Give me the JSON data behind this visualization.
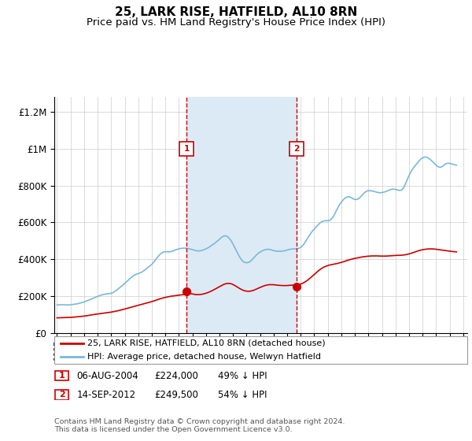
{
  "title": "25, LARK RISE, HATFIELD, AL10 8RN",
  "subtitle": "Price paid vs. HM Land Registry's House Price Index (HPI)",
  "title_fontsize": 11,
  "subtitle_fontsize": 9.5,
  "ylabel_ticks": [
    "£0",
    "£200K",
    "£400K",
    "£600K",
    "£800K",
    "£1M",
    "£1.2M"
  ],
  "ytick_values": [
    0,
    200000,
    400000,
    600000,
    800000,
    1000000,
    1200000
  ],
  "ylim": [
    0,
    1280000
  ],
  "xlim_start": 1994.8,
  "xlim_end": 2025.3,
  "hpi_color": "#7ab8d9",
  "price_color": "#cc0000",
  "shade_color": "#dceaf5",
  "vline_color": "#cc0000",
  "transaction1_x": 2004.58,
  "transaction2_x": 2012.7,
  "transaction1_price": 224000,
  "transaction2_price": 249500,
  "marker_y": 1000000,
  "footnote": "Contains HM Land Registry data © Crown copyright and database right 2024.\nThis data is licensed under the Open Government Licence v3.0.",
  "legend_label1": "25, LARK RISE, HATFIELD, AL10 8RN (detached house)",
  "legend_label2": "HPI: Average price, detached house, Welwyn Hatfield",
  "hpi_data": [
    [
      1995.0,
      152000
    ],
    [
      1995.1,
      152500
    ],
    [
      1995.2,
      153000
    ],
    [
      1995.3,
      153200
    ],
    [
      1995.4,
      153000
    ],
    [
      1995.5,
      152800
    ],
    [
      1995.6,
      152500
    ],
    [
      1995.7,
      152000
    ],
    [
      1995.8,
      151800
    ],
    [
      1995.9,
      152000
    ],
    [
      1996.0,
      153000
    ],
    [
      1996.1,
      154000
    ],
    [
      1996.2,
      155000
    ],
    [
      1996.3,
      156000
    ],
    [
      1996.4,
      157000
    ],
    [
      1996.5,
      158500
    ],
    [
      1996.6,
      160000
    ],
    [
      1996.7,
      162000
    ],
    [
      1996.8,
      164000
    ],
    [
      1996.9,
      166000
    ],
    [
      1997.0,
      168000
    ],
    [
      1997.1,
      171000
    ],
    [
      1997.2,
      174000
    ],
    [
      1997.3,
      177000
    ],
    [
      1997.4,
      180000
    ],
    [
      1997.5,
      183000
    ],
    [
      1997.6,
      186000
    ],
    [
      1997.7,
      189000
    ],
    [
      1997.8,
      192000
    ],
    [
      1997.9,
      195000
    ],
    [
      1998.0,
      198000
    ],
    [
      1998.1,
      201000
    ],
    [
      1998.2,
      204000
    ],
    [
      1998.3,
      206000
    ],
    [
      1998.4,
      208000
    ],
    [
      1998.5,
      210000
    ],
    [
      1998.6,
      211000
    ],
    [
      1998.7,
      212000
    ],
    [
      1998.8,
      213000
    ],
    [
      1998.9,
      214000
    ],
    [
      1999.0,
      215000
    ],
    [
      1999.1,
      218000
    ],
    [
      1999.2,
      222000
    ],
    [
      1999.3,
      227000
    ],
    [
      1999.4,
      232000
    ],
    [
      1999.5,
      238000
    ],
    [
      1999.6,
      244000
    ],
    [
      1999.7,
      250000
    ],
    [
      1999.8,
      256000
    ],
    [
      1999.9,
      262000
    ],
    [
      2000.0,
      268000
    ],
    [
      2000.1,
      275000
    ],
    [
      2000.2,
      282000
    ],
    [
      2000.3,
      289000
    ],
    [
      2000.4,
      296000
    ],
    [
      2000.5,
      302000
    ],
    [
      2000.6,
      308000
    ],
    [
      2000.7,
      313000
    ],
    [
      2000.8,
      317000
    ],
    [
      2000.9,
      320000
    ],
    [
      2001.0,
      322000
    ],
    [
      2001.1,
      325000
    ],
    [
      2001.2,
      328000
    ],
    [
      2001.3,
      332000
    ],
    [
      2001.4,
      337000
    ],
    [
      2001.5,
      342000
    ],
    [
      2001.6,
      348000
    ],
    [
      2001.7,
      354000
    ],
    [
      2001.8,
      360000
    ],
    [
      2001.9,
      366000
    ],
    [
      2002.0,
      372000
    ],
    [
      2002.1,
      380000
    ],
    [
      2002.2,
      389000
    ],
    [
      2002.3,
      399000
    ],
    [
      2002.4,
      409000
    ],
    [
      2002.5,
      418000
    ],
    [
      2002.6,
      426000
    ],
    [
      2002.7,
      432000
    ],
    [
      2002.8,
      437000
    ],
    [
      2002.9,
      440000
    ],
    [
      2003.0,
      441000
    ],
    [
      2003.1,
      441000
    ],
    [
      2003.2,
      440000
    ],
    [
      2003.3,
      440000
    ],
    [
      2003.4,
      441000
    ],
    [
      2003.5,
      443000
    ],
    [
      2003.6,
      446000
    ],
    [
      2003.7,
      449000
    ],
    [
      2003.8,
      452000
    ],
    [
      2003.9,
      454000
    ],
    [
      2004.0,
      456000
    ],
    [
      2004.1,
      458000
    ],
    [
      2004.2,
      459000
    ],
    [
      2004.3,
      460000
    ],
    [
      2004.4,
      460000
    ],
    [
      2004.5,
      460000
    ],
    [
      2004.58,
      459000
    ],
    [
      2004.6,
      459000
    ],
    [
      2004.7,
      458000
    ],
    [
      2004.8,
      456000
    ],
    [
      2004.9,
      454000
    ],
    [
      2005.0,
      452000
    ],
    [
      2005.1,
      450000
    ],
    [
      2005.2,
      448000
    ],
    [
      2005.3,
      446000
    ],
    [
      2005.4,
      445000
    ],
    [
      2005.5,
      445000
    ],
    [
      2005.6,
      446000
    ],
    [
      2005.7,
      448000
    ],
    [
      2005.8,
      450000
    ],
    [
      2005.9,
      453000
    ],
    [
      2006.0,
      456000
    ],
    [
      2006.1,
      460000
    ],
    [
      2006.2,
      464000
    ],
    [
      2006.3,
      469000
    ],
    [
      2006.4,
      474000
    ],
    [
      2006.5,
      479000
    ],
    [
      2006.6,
      484000
    ],
    [
      2006.7,
      490000
    ],
    [
      2006.8,
      496000
    ],
    [
      2006.9,
      502000
    ],
    [
      2007.0,
      508000
    ],
    [
      2007.1,
      515000
    ],
    [
      2007.2,
      521000
    ],
    [
      2007.3,
      525000
    ],
    [
      2007.4,
      527000
    ],
    [
      2007.5,
      526000
    ],
    [
      2007.6,
      522000
    ],
    [
      2007.7,
      515000
    ],
    [
      2007.8,
      506000
    ],
    [
      2007.9,
      495000
    ],
    [
      2008.0,
      482000
    ],
    [
      2008.1,
      468000
    ],
    [
      2008.2,
      453000
    ],
    [
      2008.3,
      438000
    ],
    [
      2008.4,
      424000
    ],
    [
      2008.5,
      411000
    ],
    [
      2008.6,
      400000
    ],
    [
      2008.7,
      391000
    ],
    [
      2008.8,
      385000
    ],
    [
      2008.9,
      382000
    ],
    [
      2009.0,
      381000
    ],
    [
      2009.1,
      382000
    ],
    [
      2009.2,
      385000
    ],
    [
      2009.3,
      390000
    ],
    [
      2009.4,
      397000
    ],
    [
      2009.5,
      405000
    ],
    [
      2009.6,
      413000
    ],
    [
      2009.7,
      421000
    ],
    [
      2009.8,
      428000
    ],
    [
      2009.9,
      434000
    ],
    [
      2010.0,
      439000
    ],
    [
      2010.1,
      443000
    ],
    [
      2010.2,
      447000
    ],
    [
      2010.3,
      450000
    ],
    [
      2010.4,
      452000
    ],
    [
      2010.5,
      454000
    ],
    [
      2010.6,
      454000
    ],
    [
      2010.7,
      453000
    ],
    [
      2010.8,
      451000
    ],
    [
      2010.9,
      449000
    ],
    [
      2011.0,
      447000
    ],
    [
      2011.1,
      445000
    ],
    [
      2011.2,
      444000
    ],
    [
      2011.3,
      443000
    ],
    [
      2011.4,
      443000
    ],
    [
      2011.5,
      443000
    ],
    [
      2011.6,
      444000
    ],
    [
      2011.7,
      445000
    ],
    [
      2011.8,
      446000
    ],
    [
      2011.9,
      448000
    ],
    [
      2012.0,
      450000
    ],
    [
      2012.1,
      452000
    ],
    [
      2012.2,
      454000
    ],
    [
      2012.3,
      455000
    ],
    [
      2012.4,
      456000
    ],
    [
      2012.5,
      456000
    ],
    [
      2012.6,
      456000
    ],
    [
      2012.7,
      457000
    ],
    [
      2012.8,
      458000
    ],
    [
      2012.9,
      461000
    ],
    [
      2013.0,
      465000
    ],
    [
      2013.1,
      471000
    ],
    [
      2013.2,
      479000
    ],
    [
      2013.3,
      489000
    ],
    [
      2013.4,
      501000
    ],
    [
      2013.5,
      513000
    ],
    [
      2013.6,
      525000
    ],
    [
      2013.7,
      536000
    ],
    [
      2013.8,
      547000
    ],
    [
      2013.9,
      556000
    ],
    [
      2014.0,
      564000
    ],
    [
      2014.1,
      572000
    ],
    [
      2014.2,
      580000
    ],
    [
      2014.3,
      588000
    ],
    [
      2014.4,
      595000
    ],
    [
      2014.5,
      601000
    ],
    [
      2014.6,
      605000
    ],
    [
      2014.7,
      608000
    ],
    [
      2014.8,
      609000
    ],
    [
      2014.9,
      609000
    ],
    [
      2015.0,
      609000
    ],
    [
      2015.1,
      610000
    ],
    [
      2015.2,
      614000
    ],
    [
      2015.3,
      621000
    ],
    [
      2015.4,
      631000
    ],
    [
      2015.5,
      644000
    ],
    [
      2015.6,
      659000
    ],
    [
      2015.7,
      674000
    ],
    [
      2015.8,
      688000
    ],
    [
      2015.9,
      700000
    ],
    [
      2016.0,
      710000
    ],
    [
      2016.1,
      719000
    ],
    [
      2016.2,
      727000
    ],
    [
      2016.3,
      733000
    ],
    [
      2016.4,
      737000
    ],
    [
      2016.5,
      739000
    ],
    [
      2016.6,
      738000
    ],
    [
      2016.7,
      735000
    ],
    [
      2016.8,
      731000
    ],
    [
      2016.9,
      727000
    ],
    [
      2017.0,
      724000
    ],
    [
      2017.1,
      724000
    ],
    [
      2017.2,
      726000
    ],
    [
      2017.3,
      730000
    ],
    [
      2017.4,
      737000
    ],
    [
      2017.5,
      745000
    ],
    [
      2017.6,
      753000
    ],
    [
      2017.7,
      760000
    ],
    [
      2017.8,
      766000
    ],
    [
      2017.9,
      770000
    ],
    [
      2018.0,
      772000
    ],
    [
      2018.1,
      772000
    ],
    [
      2018.2,
      771000
    ],
    [
      2018.3,
      770000
    ],
    [
      2018.4,
      768000
    ],
    [
      2018.5,
      766000
    ],
    [
      2018.6,
      764000
    ],
    [
      2018.7,
      762000
    ],
    [
      2018.8,
      761000
    ],
    [
      2018.9,
      761000
    ],
    [
      2019.0,
      762000
    ],
    [
      2019.1,
      763000
    ],
    [
      2019.2,
      765000
    ],
    [
      2019.3,
      768000
    ],
    [
      2019.4,
      771000
    ],
    [
      2019.5,
      774000
    ],
    [
      2019.6,
      777000
    ],
    [
      2019.7,
      779000
    ],
    [
      2019.8,
      780000
    ],
    [
      2019.9,
      780000
    ],
    [
      2020.0,
      779000
    ],
    [
      2020.1,
      777000
    ],
    [
      2020.2,
      775000
    ],
    [
      2020.3,
      773000
    ],
    [
      2020.4,
      774000
    ],
    [
      2020.5,
      779000
    ],
    [
      2020.6,
      789000
    ],
    [
      2020.7,
      804000
    ],
    [
      2020.8,
      821000
    ],
    [
      2020.9,
      838000
    ],
    [
      2021.0,
      854000
    ],
    [
      2021.1,
      869000
    ],
    [
      2021.2,
      882000
    ],
    [
      2021.3,
      893000
    ],
    [
      2021.4,
      903000
    ],
    [
      2021.5,
      912000
    ],
    [
      2021.6,
      921000
    ],
    [
      2021.7,
      930000
    ],
    [
      2021.8,
      938000
    ],
    [
      2021.9,
      945000
    ],
    [
      2022.0,
      950000
    ],
    [
      2022.1,
      953000
    ],
    [
      2022.2,
      954000
    ],
    [
      2022.3,
      953000
    ],
    [
      2022.4,
      950000
    ],
    [
      2022.5,
      945000
    ],
    [
      2022.6,
      939000
    ],
    [
      2022.7,
      932000
    ],
    [
      2022.8,
      924000
    ],
    [
      2022.9,
      917000
    ],
    [
      2023.0,
      910000
    ],
    [
      2023.1,
      904000
    ],
    [
      2023.2,
      900000
    ],
    [
      2023.3,
      899000
    ],
    [
      2023.4,
      901000
    ],
    [
      2023.5,
      906000
    ],
    [
      2023.6,
      912000
    ],
    [
      2023.7,
      917000
    ],
    [
      2023.8,
      920000
    ],
    [
      2023.9,
      921000
    ],
    [
      2024.0,
      920000
    ],
    [
      2024.1,
      918000
    ],
    [
      2024.2,
      916000
    ],
    [
      2024.3,
      914000
    ],
    [
      2024.4,
      912000
    ],
    [
      2024.5,
      910000
    ]
  ],
  "price_data": [
    [
      1995.0,
      82000
    ],
    [
      1995.2,
      82500
    ],
    [
      1995.4,
      83000
    ],
    [
      1995.6,
      83500
    ],
    [
      1995.8,
      84000
    ],
    [
      1996.0,
      84500
    ],
    [
      1996.2,
      85500
    ],
    [
      1996.4,
      87000
    ],
    [
      1996.6,
      88500
    ],
    [
      1996.8,
      90000
    ],
    [
      1997.0,
      91500
    ],
    [
      1997.2,
      93500
    ],
    [
      1997.4,
      96000
    ],
    [
      1997.6,
      98500
    ],
    [
      1997.8,
      101000
    ],
    [
      1998.0,
      103000
    ],
    [
      1998.2,
      105000
    ],
    [
      1998.4,
      107000
    ],
    [
      1998.6,
      109000
    ],
    [
      1998.8,
      111000
    ],
    [
      1999.0,
      113000
    ],
    [
      1999.2,
      116000
    ],
    [
      1999.4,
      119000
    ],
    [
      1999.6,
      122000
    ],
    [
      1999.8,
      126000
    ],
    [
      2000.0,
      130000
    ],
    [
      2000.2,
      134000
    ],
    [
      2000.4,
      138000
    ],
    [
      2000.6,
      142000
    ],
    [
      2000.8,
      146000
    ],
    [
      2001.0,
      150000
    ],
    [
      2001.2,
      154000
    ],
    [
      2001.4,
      158000
    ],
    [
      2001.6,
      162000
    ],
    [
      2001.8,
      166000
    ],
    [
      2002.0,
      170000
    ],
    [
      2002.2,
      175000
    ],
    [
      2002.4,
      180000
    ],
    [
      2002.6,
      185000
    ],
    [
      2002.8,
      189000
    ],
    [
      2003.0,
      193000
    ],
    [
      2003.2,
      196000
    ],
    [
      2003.4,
      199000
    ],
    [
      2003.6,
      201000
    ],
    [
      2003.8,
      203000
    ],
    [
      2004.0,
      205000
    ],
    [
      2004.2,
      207000
    ],
    [
      2004.4,
      208000
    ],
    [
      2004.58,
      224000
    ],
    [
      2004.7,
      218000
    ],
    [
      2004.9,
      213000
    ],
    [
      2005.1,
      210000
    ],
    [
      2005.3,
      208000
    ],
    [
      2005.5,
      208000
    ],
    [
      2005.7,
      210000
    ],
    [
      2005.9,
      213000
    ],
    [
      2006.1,
      218000
    ],
    [
      2006.3,
      224000
    ],
    [
      2006.5,
      231000
    ],
    [
      2006.7,
      239000
    ],
    [
      2006.9,
      247000
    ],
    [
      2007.1,
      255000
    ],
    [
      2007.3,
      263000
    ],
    [
      2007.5,
      268000
    ],
    [
      2007.7,
      269000
    ],
    [
      2007.9,
      266000
    ],
    [
      2008.1,
      259000
    ],
    [
      2008.3,
      250000
    ],
    [
      2008.5,
      241000
    ],
    [
      2008.7,
      233000
    ],
    [
      2008.9,
      228000
    ],
    [
      2009.1,
      226000
    ],
    [
      2009.3,
      227000
    ],
    [
      2009.5,
      231000
    ],
    [
      2009.7,
      237000
    ],
    [
      2009.9,
      244000
    ],
    [
      2010.1,
      250000
    ],
    [
      2010.3,
      256000
    ],
    [
      2010.5,
      260000
    ],
    [
      2010.7,
      262000
    ],
    [
      2010.9,
      262000
    ],
    [
      2011.1,
      261000
    ],
    [
      2011.3,
      259000
    ],
    [
      2011.5,
      258000
    ],
    [
      2011.7,
      257000
    ],
    [
      2011.9,
      257000
    ],
    [
      2012.1,
      258000
    ],
    [
      2012.3,
      259000
    ],
    [
      2012.5,
      260000
    ],
    [
      2012.7,
      249500
    ],
    [
      2012.9,
      263000
    ],
    [
      2013.1,
      268000
    ],
    [
      2013.3,
      276000
    ],
    [
      2013.5,
      286000
    ],
    [
      2013.7,
      298000
    ],
    [
      2013.9,
      311000
    ],
    [
      2014.1,
      324000
    ],
    [
      2014.3,
      337000
    ],
    [
      2014.5,
      348000
    ],
    [
      2014.7,
      357000
    ],
    [
      2014.9,
      363000
    ],
    [
      2015.1,
      368000
    ],
    [
      2015.3,
      371000
    ],
    [
      2015.5,
      374000
    ],
    [
      2015.7,
      377000
    ],
    [
      2015.9,
      381000
    ],
    [
      2016.1,
      385000
    ],
    [
      2016.3,
      390000
    ],
    [
      2016.5,
      395000
    ],
    [
      2016.7,
      399000
    ],
    [
      2016.9,
      403000
    ],
    [
      2017.1,
      406000
    ],
    [
      2017.3,
      409000
    ],
    [
      2017.5,
      412000
    ],
    [
      2017.7,
      414000
    ],
    [
      2017.9,
      416000
    ],
    [
      2018.1,
      417000
    ],
    [
      2018.3,
      418000
    ],
    [
      2018.5,
      418000
    ],
    [
      2018.7,
      418000
    ],
    [
      2018.9,
      417000
    ],
    [
      2019.1,
      417000
    ],
    [
      2019.3,
      417000
    ],
    [
      2019.5,
      418000
    ],
    [
      2019.7,
      419000
    ],
    [
      2019.9,
      420000
    ],
    [
      2020.1,
      421000
    ],
    [
      2020.3,
      421000
    ],
    [
      2020.5,
      422000
    ],
    [
      2020.7,
      424000
    ],
    [
      2020.9,
      427000
    ],
    [
      2021.1,
      431000
    ],
    [
      2021.3,
      436000
    ],
    [
      2021.5,
      441000
    ],
    [
      2021.7,
      446000
    ],
    [
      2021.9,
      450000
    ],
    [
      2022.1,
      453000
    ],
    [
      2022.3,
      455000
    ],
    [
      2022.5,
      456000
    ],
    [
      2022.7,
      456000
    ],
    [
      2022.9,
      455000
    ],
    [
      2023.1,
      453000
    ],
    [
      2023.3,
      451000
    ],
    [
      2023.5,
      449000
    ],
    [
      2023.7,
      447000
    ],
    [
      2023.9,
      445000
    ],
    [
      2024.1,
      443000
    ],
    [
      2024.3,
      441000
    ],
    [
      2024.5,
      440000
    ]
  ]
}
